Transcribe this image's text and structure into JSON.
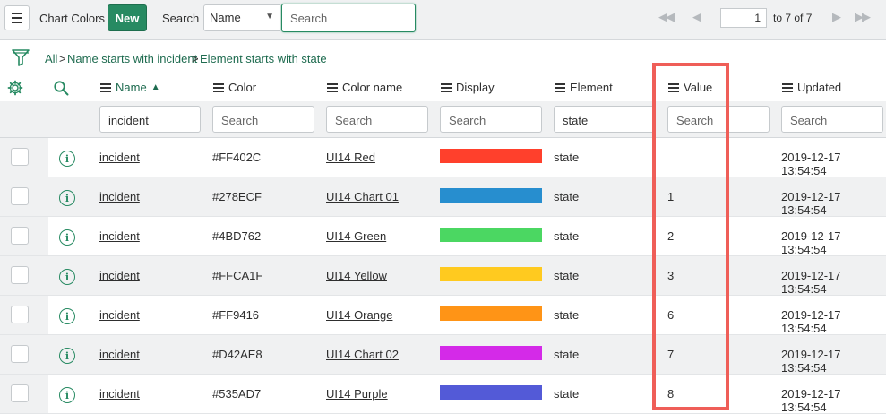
{
  "toolbar": {
    "title": "Chart Colors",
    "new_label": "New",
    "search_label": "Search",
    "search_field": "Name",
    "search_placeholder": "Search",
    "nav_first": "◀◀",
    "nav_prev": "◀",
    "nav_next": "▶",
    "nav_last": "▶▶",
    "page_current": "1",
    "page_range": "to 7 of 7"
  },
  "breadcrumb": {
    "items": [
      "All",
      "Name starts with incident",
      "Element starts with state"
    ],
    "separator": ">"
  },
  "columns": [
    {
      "key": "name",
      "label": "Name",
      "sort": "▲"
    },
    {
      "key": "color",
      "label": "Color"
    },
    {
      "key": "color_name",
      "label": "Color name"
    },
    {
      "key": "display",
      "label": "Display"
    },
    {
      "key": "element",
      "label": "Element"
    },
    {
      "key": "value",
      "label": "Value"
    },
    {
      "key": "updated",
      "label": "Updated"
    }
  ],
  "filters": {
    "name": "incident",
    "color": "Search",
    "color_name": "Search",
    "display": "Search",
    "element": "state",
    "value": "Search",
    "updated": "Search"
  },
  "rows": [
    {
      "name": "incident",
      "color": "#FF402C",
      "color_name": "UI14 Red",
      "swatch": "#FF402C",
      "element": "state",
      "value": "",
      "updated": "2019-12-17 13:54:54"
    },
    {
      "name": "incident",
      "color": "#278ECF",
      "color_name": "UI14 Chart 01",
      "swatch": "#278ECF",
      "element": "state",
      "value": "1",
      "updated": "2019-12-17 13:54:54"
    },
    {
      "name": "incident",
      "color": "#4BD762",
      "color_name": "UI14 Green",
      "swatch": "#4BD762",
      "element": "state",
      "value": "2",
      "updated": "2019-12-17 13:54:54"
    },
    {
      "name": "incident",
      "color": "#FFCA1F",
      "color_name": "UI14 Yellow",
      "swatch": "#FFCA1F",
      "element": "state",
      "value": "3",
      "updated": "2019-12-17 13:54:54"
    },
    {
      "name": "incident",
      "color": "#FF9416",
      "color_name": "UI14 Orange",
      "swatch": "#FF9416",
      "element": "state",
      "value": "6",
      "updated": "2019-12-17 13:54:54"
    },
    {
      "name": "incident",
      "color": "#D42AE8",
      "color_name": "UI14 Chart 02",
      "swatch": "#D42AE8",
      "element": "state",
      "value": "7",
      "updated": "2019-12-17 13:54:54"
    },
    {
      "name": "incident",
      "color": "#535AD7",
      "color_name": "UI14 Purple",
      "swatch": "#535AD7",
      "element": "state",
      "value": "8",
      "updated": "2019-12-17 13:54:54"
    }
  ],
  "colors": {
    "accent": "#278A62",
    "link": "#1E6B4F",
    "highlight": "#EF5E58"
  }
}
